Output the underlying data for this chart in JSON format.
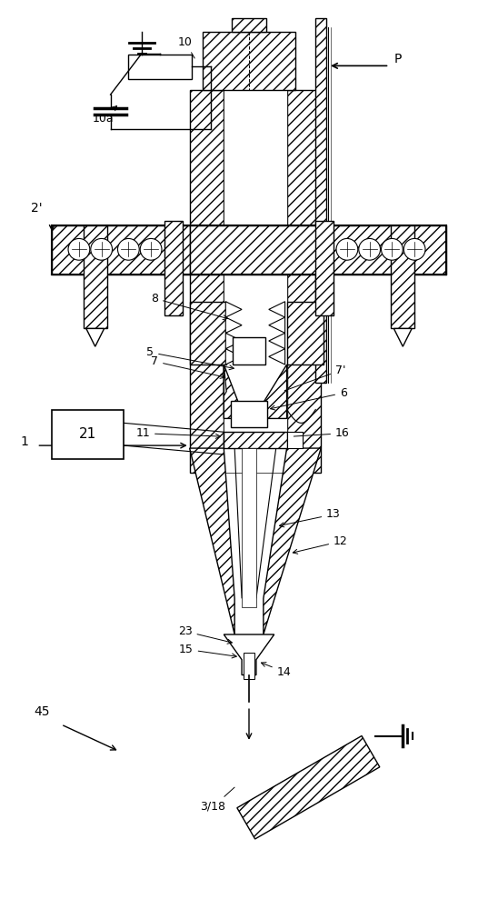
{
  "bg_color": "#ffffff",
  "lc": "#000000",
  "figsize": [
    5.48,
    10.0
  ],
  "dpi": 100,
  "hatch_density": "///",
  "lw": 1.0
}
